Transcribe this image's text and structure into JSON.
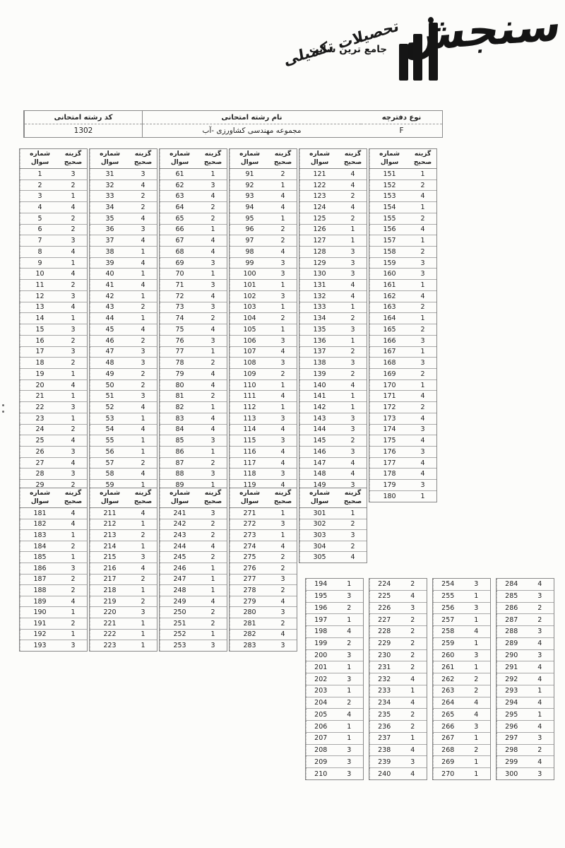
{
  "logo": {
    "brand": "سنجش",
    "mark": "۳",
    "tagline": "جامع ترین سایت",
    "tagline_script": "تحصیلات تکمیلی"
  },
  "info": {
    "code_label": "کد رشته امتحانی",
    "code_value": "1302",
    "name_label": "نام رشته امتحانی",
    "name_value": "مجموعه مهندسی کشاورزی -آب",
    "booklet_label": "نوع دفترچه",
    "booklet_value": "F"
  },
  "headers": {
    "question": "شماره\nسوال",
    "answer": "گزینه\nصحیح"
  },
  "tables": {
    "block1": [
      [
        [
          1,
          3
        ],
        [
          2,
          2
        ],
        [
          3,
          1
        ],
        [
          4,
          4
        ],
        [
          5,
          2
        ],
        [
          6,
          2
        ],
        [
          7,
          3
        ],
        [
          8,
          4
        ],
        [
          9,
          1
        ],
        [
          10,
          4
        ],
        [
          11,
          2
        ],
        [
          12,
          3
        ],
        [
          13,
          4
        ],
        [
          14,
          1
        ],
        [
          15,
          3
        ],
        [
          16,
          2
        ],
        [
          17,
          3
        ],
        [
          18,
          2
        ],
        [
          19,
          1
        ],
        [
          20,
          4
        ],
        [
          21,
          1
        ],
        [
          22,
          3
        ],
        [
          23,
          1
        ],
        [
          24,
          2
        ],
        [
          25,
          4
        ],
        [
          26,
          3
        ],
        [
          27,
          4
        ],
        [
          28,
          3
        ],
        [
          29,
          2
        ],
        [
          30,
          1
        ]
      ],
      [
        [
          31,
          3
        ],
        [
          32,
          4
        ],
        [
          33,
          2
        ],
        [
          34,
          2
        ],
        [
          35,
          4
        ],
        [
          36,
          3
        ],
        [
          37,
          4
        ],
        [
          38,
          1
        ],
        [
          39,
          4
        ],
        [
          40,
          1
        ],
        [
          41,
          4
        ],
        [
          42,
          1
        ],
        [
          43,
          2
        ],
        [
          44,
          1
        ],
        [
          45,
          4
        ],
        [
          46,
          2
        ],
        [
          47,
          3
        ],
        [
          48,
          3
        ],
        [
          49,
          2
        ],
        [
          50,
          2
        ],
        [
          51,
          3
        ],
        [
          52,
          4
        ],
        [
          53,
          1
        ],
        [
          54,
          4
        ],
        [
          55,
          1
        ],
        [
          56,
          1
        ],
        [
          57,
          2
        ],
        [
          58,
          4
        ],
        [
          59,
          1
        ],
        [
          60,
          2
        ]
      ],
      [
        [
          61,
          1
        ],
        [
          62,
          3
        ],
        [
          63,
          4
        ],
        [
          64,
          2
        ],
        [
          65,
          2
        ],
        [
          66,
          1
        ],
        [
          67,
          4
        ],
        [
          68,
          4
        ],
        [
          69,
          3
        ],
        [
          70,
          1
        ],
        [
          71,
          3
        ],
        [
          72,
          4
        ],
        [
          73,
          3
        ],
        [
          74,
          2
        ],
        [
          75,
          4
        ],
        [
          76,
          3
        ],
        [
          77,
          1
        ],
        [
          78,
          2
        ],
        [
          79,
          4
        ],
        [
          80,
          4
        ],
        [
          81,
          2
        ],
        [
          82,
          1
        ],
        [
          83,
          4
        ],
        [
          84,
          4
        ],
        [
          85,
          3
        ],
        [
          86,
          1
        ],
        [
          87,
          2
        ],
        [
          88,
          3
        ],
        [
          89,
          1
        ],
        [
          90,
          3
        ]
      ],
      [
        [
          91,
          2
        ],
        [
          92,
          1
        ],
        [
          93,
          4
        ],
        [
          94,
          4
        ],
        [
          95,
          1
        ],
        [
          96,
          2
        ],
        [
          97,
          2
        ],
        [
          98,
          4
        ],
        [
          99,
          3
        ],
        [
          100,
          3
        ],
        [
          101,
          1
        ],
        [
          102,
          3
        ],
        [
          103,
          1
        ],
        [
          104,
          2
        ],
        [
          105,
          1
        ],
        [
          106,
          3
        ],
        [
          107,
          4
        ],
        [
          108,
          3
        ],
        [
          109,
          2
        ],
        [
          110,
          1
        ],
        [
          111,
          4
        ],
        [
          112,
          1
        ],
        [
          113,
          3
        ],
        [
          114,
          4
        ],
        [
          115,
          3
        ],
        [
          116,
          4
        ],
        [
          117,
          4
        ],
        [
          118,
          3
        ],
        [
          119,
          4
        ],
        [
          120,
          1
        ]
      ],
      [
        [
          121,
          4
        ],
        [
          122,
          4
        ],
        [
          123,
          2
        ],
        [
          124,
          4
        ],
        [
          125,
          2
        ],
        [
          126,
          1
        ],
        [
          127,
          1
        ],
        [
          128,
          3
        ],
        [
          129,
          3
        ],
        [
          130,
          3
        ],
        [
          131,
          4
        ],
        [
          132,
          4
        ],
        [
          133,
          1
        ],
        [
          134,
          2
        ],
        [
          135,
          3
        ],
        [
          136,
          1
        ],
        [
          137,
          2
        ],
        [
          138,
          3
        ],
        [
          139,
          2
        ],
        [
          140,
          4
        ],
        [
          141,
          1
        ],
        [
          142,
          1
        ],
        [
          143,
          3
        ],
        [
          144,
          3
        ],
        [
          145,
          2
        ],
        [
          146,
          3
        ],
        [
          147,
          4
        ],
        [
          148,
          4
        ],
        [
          149,
          3
        ],
        [
          150,
          4
        ]
      ],
      [
        [
          151,
          1
        ],
        [
          152,
          2
        ],
        [
          153,
          4
        ],
        [
          154,
          1
        ],
        [
          155,
          2
        ],
        [
          156,
          4
        ],
        [
          157,
          1
        ],
        [
          158,
          2
        ],
        [
          159,
          3
        ],
        [
          160,
          3
        ],
        [
          161,
          1
        ],
        [
          162,
          4
        ],
        [
          163,
          2
        ],
        [
          164,
          1
        ],
        [
          165,
          2
        ],
        [
          166,
          3
        ],
        [
          167,
          1
        ],
        [
          168,
          3
        ],
        [
          169,
          2
        ],
        [
          170,
          1
        ],
        [
          171,
          4
        ],
        [
          172,
          2
        ],
        [
          173,
          4
        ],
        [
          174,
          3
        ],
        [
          175,
          4
        ],
        [
          176,
          3
        ],
        [
          177,
          4
        ],
        [
          178,
          4
        ],
        [
          179,
          3
        ],
        [
          180,
          1
        ]
      ]
    ],
    "block2": [
      [
        [
          181,
          4
        ],
        [
          182,
          4
        ],
        [
          183,
          1
        ],
        [
          184,
          2
        ],
        [
          185,
          1
        ],
        [
          186,
          3
        ],
        [
          187,
          2
        ],
        [
          188,
          2
        ],
        [
          189,
          4
        ],
        [
          190,
          1
        ],
        [
          191,
          2
        ],
        [
          192,
          1
        ],
        [
          193,
          3
        ]
      ],
      [
        [
          211,
          4
        ],
        [
          212,
          1
        ],
        [
          213,
          2
        ],
        [
          214,
          1
        ],
        [
          215,
          3
        ],
        [
          216,
          4
        ],
        [
          217,
          2
        ],
        [
          218,
          1
        ],
        [
          219,
          2
        ],
        [
          220,
          3
        ],
        [
          221,
          1
        ],
        [
          222,
          1
        ],
        [
          223,
          1
        ]
      ],
      [
        [
          241,
          3
        ],
        [
          242,
          2
        ],
        [
          243,
          2
        ],
        [
          244,
          4
        ],
        [
          245,
          2
        ],
        [
          246,
          1
        ],
        [
          247,
          1
        ],
        [
          248,
          1
        ],
        [
          249,
          4
        ],
        [
          250,
          2
        ],
        [
          251,
          2
        ],
        [
          252,
          1
        ],
        [
          253,
          3
        ]
      ],
      [
        [
          271,
          1
        ],
        [
          272,
          3
        ],
        [
          273,
          1
        ],
        [
          274,
          4
        ],
        [
          275,
          2
        ],
        [
          276,
          2
        ],
        [
          277,
          3
        ],
        [
          278,
          2
        ],
        [
          279,
          4
        ],
        [
          280,
          3
        ],
        [
          281,
          2
        ],
        [
          282,
          4
        ],
        [
          283,
          3
        ]
      ],
      [
        [
          301,
          1
        ],
        [
          302,
          2
        ],
        [
          303,
          3
        ],
        [
          304,
          2
        ],
        [
          305,
          4
        ]
      ]
    ],
    "block3": [
      [
        [
          194,
          1
        ],
        [
          195,
          3
        ],
        [
          196,
          2
        ],
        [
          197,
          1
        ],
        [
          198,
          4
        ],
        [
          199,
          2
        ],
        [
          200,
          3
        ],
        [
          201,
          1
        ],
        [
          202,
          3
        ],
        [
          203,
          1
        ],
        [
          204,
          2
        ],
        [
          205,
          4
        ],
        [
          206,
          1
        ],
        [
          207,
          1
        ],
        [
          208,
          3
        ],
        [
          209,
          3
        ],
        [
          210,
          3
        ]
      ],
      [
        [
          224,
          2
        ],
        [
          225,
          4
        ],
        [
          226,
          3
        ],
        [
          227,
          2
        ],
        [
          228,
          2
        ],
        [
          229,
          2
        ],
        [
          230,
          2
        ],
        [
          231,
          2
        ],
        [
          232,
          4
        ],
        [
          233,
          1
        ],
        [
          234,
          4
        ],
        [
          235,
          2
        ],
        [
          236,
          2
        ],
        [
          237,
          1
        ],
        [
          238,
          4
        ],
        [
          239,
          3
        ],
        [
          240,
          4
        ]
      ],
      [
        [
          254,
          3
        ],
        [
          255,
          1
        ],
        [
          256,
          3
        ],
        [
          257,
          1
        ],
        [
          258,
          4
        ],
        [
          259,
          1
        ],
        [
          260,
          3
        ],
        [
          261,
          1
        ],
        [
          262,
          2
        ],
        [
          263,
          2
        ],
        [
          264,
          4
        ],
        [
          265,
          4
        ],
        [
          266,
          3
        ],
        [
          267,
          1
        ],
        [
          268,
          2
        ],
        [
          269,
          1
        ],
        [
          270,
          1
        ]
      ],
      [
        [
          284,
          4
        ],
        [
          285,
          3
        ],
        [
          286,
          2
        ],
        [
          287,
          2
        ],
        [
          288,
          3
        ],
        [
          289,
          4
        ],
        [
          290,
          3
        ],
        [
          291,
          4
        ],
        [
          292,
          4
        ],
        [
          293,
          1
        ],
        [
          294,
          4
        ],
        [
          295,
          1
        ],
        [
          296,
          4
        ],
        [
          297,
          3
        ],
        [
          298,
          2
        ],
        [
          299,
          4
        ],
        [
          300,
          3
        ]
      ]
    ]
  }
}
